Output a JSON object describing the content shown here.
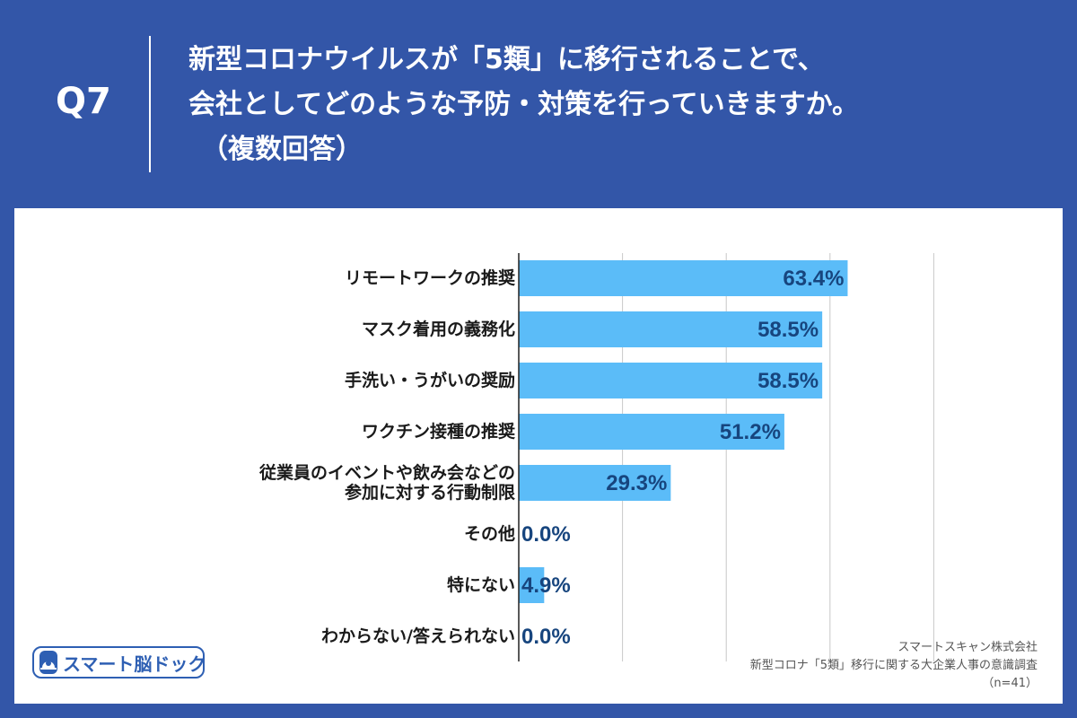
{
  "header": {
    "q_label": "Q7",
    "question_lines": [
      "新型コロナウイルスが「5類」に移行されることで、",
      "会社としてどのような予防・対策を行っていきますか。",
      "（複数回答）"
    ]
  },
  "logo": {
    "text": "スマート脳ドック"
  },
  "footer": {
    "company": "スマートスキャン株式会社",
    "survey": "新型コロナ「5類」移行に関する大企業人事の意識調査",
    "sample": "（n=41）"
  },
  "colors": {
    "header_bg": "#3356a8",
    "bar": "#5bbcf8",
    "value_label": "#17457e",
    "grid": "#c8c8c8"
  },
  "chart_data": {
    "type": "bar",
    "orientation": "horizontal",
    "categories": [
      [
        "リモートワークの推奨"
      ],
      [
        "マスク着用の義務化"
      ],
      [
        "手洗い・うがいの奨励"
      ],
      [
        "ワクチン接種の推奨"
      ],
      [
        "従業員のイベントや飲み会などの",
        "参加に対する行動制限"
      ],
      [
        "その他"
      ],
      [
        "特にない"
      ],
      [
        "わからない/答えられない"
      ]
    ],
    "values": [
      63.4,
      58.5,
      58.5,
      51.2,
      29.3,
      0.0,
      4.9,
      0.0
    ],
    "value_labels": [
      "63.4%",
      "58.5%",
      "58.5%",
      "51.2%",
      "29.3%",
      "0.0%",
      "4.9%",
      "0.0%"
    ],
    "xlim": [
      0,
      100
    ],
    "grid_ticks": [
      20,
      40,
      60,
      80
    ],
    "unit": "%"
  }
}
